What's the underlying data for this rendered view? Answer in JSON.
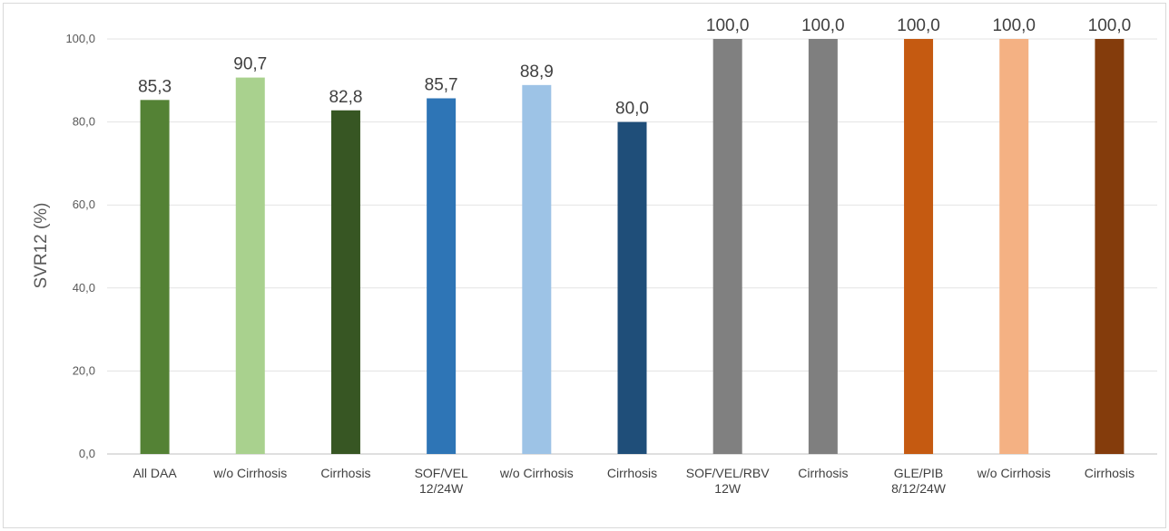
{
  "chart_data": {
    "type": "bar",
    "title": "",
    "xlabel": "",
    "ylabel": "SVR12 (%)",
    "ylim": [
      0,
      100
    ],
    "yticks": [
      "0,0",
      "20,0",
      "40,0",
      "60,0",
      "80,0",
      "100,0"
    ],
    "grid": true,
    "categories": [
      [
        "All DAA"
      ],
      [
        "w/o Cirrhosis"
      ],
      [
        "Cirrhosis"
      ],
      [
        "SOF/VEL",
        "12/24W"
      ],
      [
        "w/o Cirrhosis"
      ],
      [
        "Cirrhosis"
      ],
      [
        "SOF/VEL/RBV",
        "12W"
      ],
      [
        "Cirrhosis"
      ],
      [
        "GLE/PIB",
        "8/12/24W"
      ],
      [
        "w/o Cirrhosis"
      ],
      [
        "Cirrhosis"
      ]
    ],
    "values": [
      85.3,
      90.7,
      82.8,
      85.7,
      88.9,
      80.0,
      100.0,
      100.0,
      100.0,
      100.0,
      100.0
    ],
    "value_labels": [
      "85,3",
      "90,7",
      "82,8",
      "85,7",
      "88,9",
      "80,0",
      "100,0",
      "100,0",
      "100,0",
      "100,0",
      "100,0"
    ],
    "colors": [
      "#548235",
      "#a9d18e",
      "#375623",
      "#2e75b6",
      "#9dc3e6",
      "#1f4e79",
      "#808080",
      "#7f7f7f",
      "#c55a11",
      "#f4b183",
      "#843c0c"
    ]
  }
}
